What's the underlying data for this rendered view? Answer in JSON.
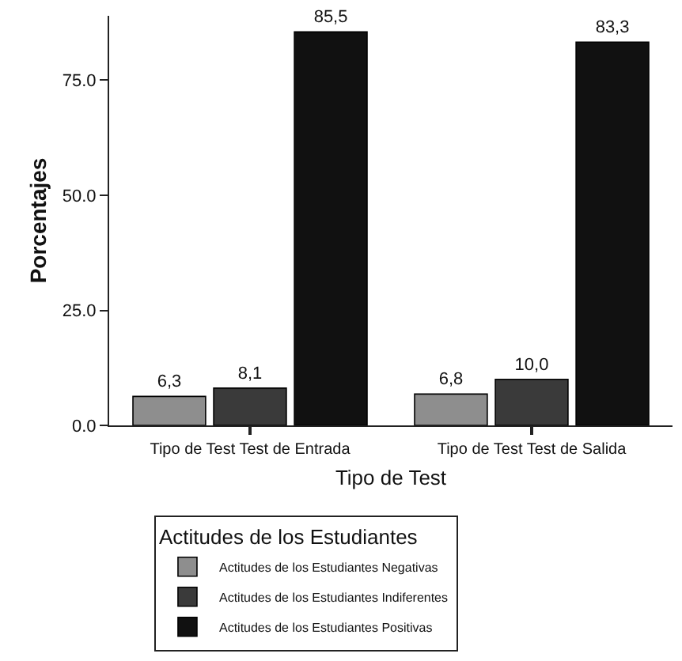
{
  "chart_data": {
    "type": "bar",
    "xlabel": "Tipo de Test",
    "ylabel": "Porcentajes",
    "legend_title": "Actitudes de los Estudiantes",
    "categories": [
      "Tipo de Test Test de Entrada",
      "Tipo de Test Test de Salida"
    ],
    "series": [
      {
        "name": "Actitudes de los Estudiantes Negativas",
        "color": "#8e8e8e",
        "values": [
          6.3,
          6.8
        ],
        "value_labels": [
          "6,3",
          "6,8"
        ]
      },
      {
        "name": "Actitudes de los Estudiantes Indiferentes",
        "color": "#3a3a3a",
        "values": [
          8.1,
          10.0
        ],
        "value_labels": [
          "8,1",
          "10,0"
        ]
      },
      {
        "name": "Actitudes de los Estudiantes Positivas",
        "color": "#111111",
        "values": [
          85.5,
          83.3
        ],
        "value_labels": [
          "85,5",
          "83,3"
        ]
      }
    ],
    "ylim": [
      0,
      89
    ],
    "yticks": [
      {
        "value": 0,
        "label": "0.0"
      },
      {
        "value": 25,
        "label": "25.0"
      },
      {
        "value": 50,
        "label": "50.0"
      },
      {
        "value": 75,
        "label": "75.0"
      }
    ],
    "grid": false,
    "legend": "bottom"
  }
}
